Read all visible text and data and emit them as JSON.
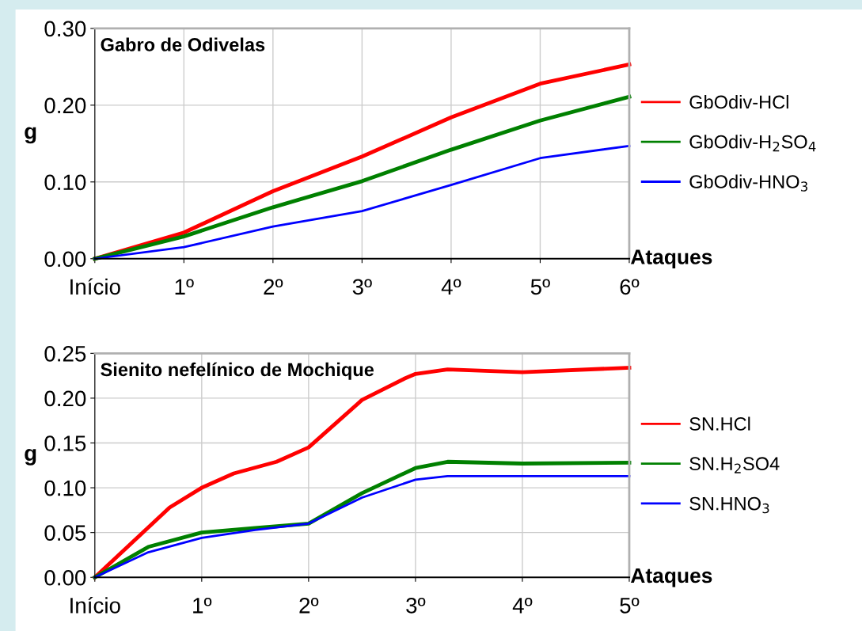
{
  "chart_data": [
    {
      "type": "line",
      "title": "Gabro de Odivelas",
      "ylabel": "g",
      "xlabel": "Ataques",
      "grid": true,
      "legend": "right",
      "x": [
        0,
        1,
        2,
        3,
        4,
        5,
        6
      ],
      "xlim": [
        0,
        6
      ],
      "xticks": [
        {
          "value": 0,
          "label": "Início"
        },
        {
          "value": 1,
          "label": "1º"
        },
        {
          "value": 2,
          "label": "2º"
        },
        {
          "value": 3,
          "label": "3º"
        },
        {
          "value": 4,
          "label": "4º"
        },
        {
          "value": 5,
          "label": "5º"
        },
        {
          "value": 6,
          "label": "6º"
        }
      ],
      "ylim": [
        0,
        0.3
      ],
      "yticks": [
        {
          "value": 0,
          "label": "0.00"
        },
        {
          "value": 0.1,
          "label": "0.10"
        },
        {
          "value": 0.2,
          "label": "0.20"
        },
        {
          "value": 0.3,
          "label": "0.30"
        }
      ],
      "series": [
        {
          "name": "GbOdiv-HCl",
          "color": "#ff0000",
          "values": [
            0,
            0.034,
            0.088,
            0.133,
            0.184,
            0.228,
            0.253
          ]
        },
        {
          "name": "GbOdiv-H$_{2}$SO$_{4}$",
          "color": "#008000",
          "values": [
            0,
            0.029,
            0.067,
            0.101,
            0.142,
            0.18,
            0.211
          ]
        },
        {
          "name": "GbOdiv-HNO$_{3}$",
          "color": "#0000ff",
          "values": [
            0,
            0.015,
            0.042,
            0.062,
            0.096,
            0.131,
            0.147
          ]
        }
      ]
    },
    {
      "type": "line",
      "title": "Sienito nefelínico de Mochique",
      "ylabel": "g",
      "xlabel": "Ataques",
      "grid": true,
      "legend": "right",
      "xlim": [
        0,
        5
      ],
      "xticks": [
        {
          "value": 0,
          "label": "Início"
        },
        {
          "value": 1,
          "label": "1º"
        },
        {
          "value": 2,
          "label": "2º"
        },
        {
          "value": 3,
          "label": "3º"
        },
        {
          "value": 4,
          "label": "4º"
        },
        {
          "value": 5,
          "label": "5º"
        }
      ],
      "ylim": [
        0,
        0.25
      ],
      "yticks": [
        {
          "value": 0,
          "label": "0.00"
        },
        {
          "value": 0.05,
          "label": "0.05"
        },
        {
          "value": 0.1,
          "label": "0.10"
        },
        {
          "value": 0.15,
          "label": "0.15"
        },
        {
          "value": 0.2,
          "label": "0.20"
        },
        {
          "value": 0.25,
          "label": "0.25"
        }
      ],
      "series": [
        {
          "name": "SN.HCl",
          "color": "#ff0000",
          "x": [
            0,
            0.7,
            1,
            1.3,
            1.7,
            2,
            2.5,
            2.9,
            3,
            3.3,
            4,
            5
          ],
          "values": [
            0,
            0.078,
            0.1,
            0.116,
            0.129,
            0.145,
            0.198,
            0.222,
            0.227,
            0.232,
            0.229,
            0.234
          ]
        },
        {
          "name": "SN.H$_{2}$SO4",
          "color": "#008000",
          "x": [
            0,
            0.5,
            1,
            1.5,
            2,
            2.5,
            3,
            3.3,
            4,
            5
          ],
          "values": [
            0,
            0.034,
            0.05,
            0.055,
            0.06,
            0.094,
            0.122,
            0.129,
            0.127,
            0.128
          ]
        },
        {
          "name": "SN.HNO$_{3}$",
          "color": "#0000ff",
          "x": [
            0,
            0.5,
            1,
            1.5,
            2,
            2.5,
            3,
            3.3,
            4,
            5
          ],
          "values": [
            0,
            0.028,
            0.044,
            0.053,
            0.06,
            0.089,
            0.109,
            0.113,
            0.113,
            0.113
          ]
        }
      ]
    }
  ]
}
